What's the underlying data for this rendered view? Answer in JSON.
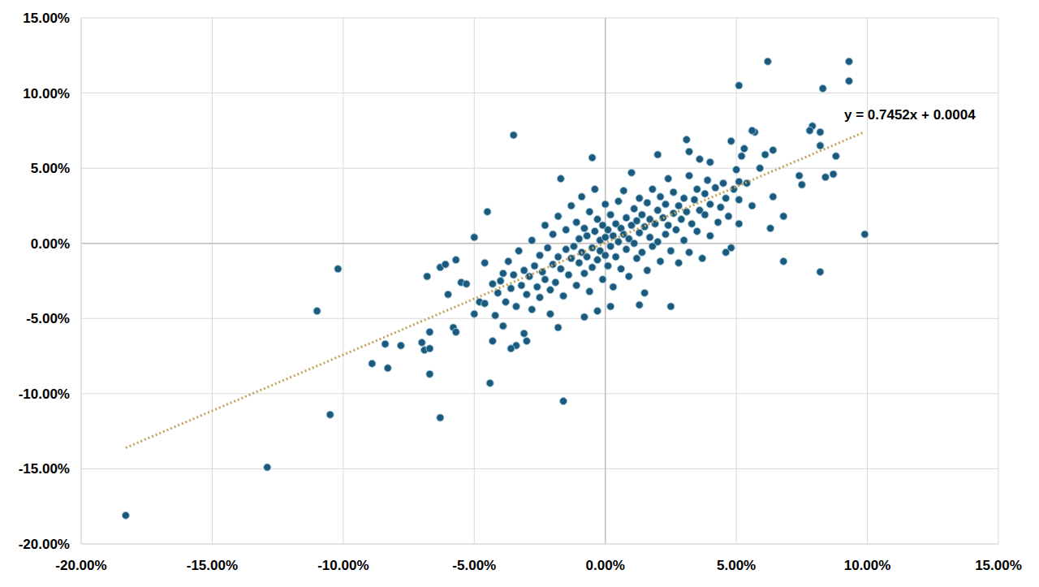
{
  "chart_data": {
    "type": "scatter",
    "marker": "circle",
    "color": "#1b5a7c",
    "x": [
      -18.3,
      -12.9,
      -11.0,
      -10.2,
      -10.5,
      -8.9,
      -8.3,
      -8.4,
      -7.8,
      -7.0,
      -6.9,
      -6.7,
      -6.7,
      -6.3,
      -6.8,
      -6.7,
      -6.3,
      -6.1,
      -5.7,
      -6.0,
      -5.8,
      -5.7,
      -5.5,
      -5.3,
      -5.0,
      -5.0,
      -4.8,
      -4.5,
      -4.4,
      -4.3,
      -3.5,
      -1.6,
      -1.7,
      -0.5,
      5.1,
      6.2,
      9.3,
      9.3,
      8.3,
      9.9,
      8.2,
      6.8,
      8.7,
      8.4,
      8.8,
      8.2,
      8.2,
      7.9,
      7.8,
      7.4,
      7.5,
      6.8,
      6.3,
      6.4,
      6.4,
      6.1,
      5.9,
      5.7,
      5.6,
      5.3,
      5.2,
      5.1,
      5.1,
      5.1,
      4.8,
      4.6,
      4.8,
      2.5,
      1.5,
      1.3,
      0.2,
      -0.3,
      -0.8,
      -1.8,
      -2.1,
      -3.0,
      -3.1,
      -3.4,
      -3.6,
      -3.9,
      3.1,
      3.2,
      2.0,
      4.0,
      3.6,
      -4.0,
      -3.8,
      -3.7,
      -3.6,
      -3.5,
      -3.4,
      -3.3,
      -3.2,
      -3.1,
      -3.0,
      -2.9,
      -2.8,
      -2.8,
      -2.7,
      -2.6,
      -2.5,
      -2.5,
      -2.4,
      -2.3,
      -2.3,
      -2.2,
      -2.1,
      -2.0,
      -2.0,
      -1.9,
      -1.8,
      -1.8,
      -1.7,
      -1.6,
      -1.5,
      -1.5,
      -1.4,
      -1.3,
      -1.3,
      -1.2,
      -1.1,
      -1.1,
      -1.0,
      -1.0,
      -0.9,
      -0.9,
      -0.8,
      -0.8,
      -0.7,
      -0.7,
      -0.6,
      -0.6,
      -0.5,
      -0.5,
      -0.4,
      -0.4,
      -0.3,
      -0.3,
      -0.2,
      -0.2,
      -0.1,
      -0.1,
      0.0,
      0.0,
      0.0,
      0.1,
      0.1,
      0.2,
      0.2,
      0.3,
      0.3,
      0.4,
      0.4,
      0.5,
      0.5,
      0.6,
      0.6,
      0.7,
      0.7,
      0.8,
      0.8,
      0.9,
      0.9,
      1.0,
      1.0,
      1.1,
      1.1,
      1.2,
      1.2,
      1.3,
      1.3,
      1.4,
      1.4,
      1.5,
      1.6,
      1.6,
      1.7,
      1.7,
      1.8,
      1.8,
      1.9,
      2.0,
      2.0,
      2.1,
      2.1,
      2.2,
      2.3,
      2.3,
      2.4,
      2.4,
      2.5,
      2.6,
      2.6,
      2.7,
      2.8,
      2.8,
      2.9,
      3.0,
      3.0,
      3.1,
      3.2,
      3.2,
      3.3,
      3.4,
      3.5,
      3.5,
      3.6,
      3.7,
      3.8,
      3.8,
      3.9,
      4.0,
      4.0,
      4.2,
      4.3,
      4.4,
      4.5,
      4.6,
      4.7,
      4.9,
      5.0,
      5.4,
      5.6,
      -4.2,
      -4.1,
      -3.9,
      -4.6,
      -4.6,
      -4.3
    ],
    "values": [
      -18.1,
      -14.9,
      -4.5,
      -1.7,
      -11.4,
      -8.0,
      -8.3,
      -6.7,
      -6.8,
      -6.6,
      -7.1,
      -7.0,
      -8.7,
      -11.6,
      -2.2,
      -5.9,
      -1.6,
      -1.4,
      -1.1,
      -3.4,
      -5.6,
      -5.9,
      -2.6,
      -2.7,
      -4.7,
      0.4,
      -3.9,
      2.1,
      -9.3,
      -6.5,
      7.2,
      -10.5,
      4.3,
      5.7,
      10.5,
      12.1,
      12.1,
      10.8,
      10.3,
      0.6,
      -1.9,
      -1.2,
      4.6,
      4.4,
      5.8,
      6.5,
      7.4,
      7.8,
      7.5,
      4.5,
      3.9,
      1.8,
      1.0,
      3.1,
      6.2,
      5.9,
      5.0,
      7.4,
      7.5,
      6.3,
      5.8,
      4.1,
      2.9,
      1.3,
      -0.3,
      -0.6,
      6.8,
      -4.2,
      -3.3,
      -4.1,
      -4.2,
      -4.5,
      -4.9,
      -5.6,
      -4.7,
      -6.5,
      -6.0,
      -6.8,
      -7.0,
      -5.5,
      6.9,
      6.1,
      5.9,
      5.4,
      5.6,
      -2.5,
      -3.9,
      -1.2,
      -3.0,
      -2.1,
      -4.2,
      -0.5,
      -2.8,
      -1.8,
      -3.4,
      -2.2,
      0.2,
      -4.4,
      -1.5,
      -2.9,
      -0.8,
      -3.6,
      -1.9,
      1.2,
      -2.4,
      -0.3,
      -3.1,
      -1.4,
      0.6,
      -2.6,
      -0.9,
      1.8,
      -1.7,
      -3.5,
      -0.4,
      0.9,
      -2.1,
      -1.0,
      2.5,
      -0.2,
      -2.8,
      1.4,
      -1.3,
      0.3,
      -0.6,
      3.1,
      -2.0,
      1.0,
      -0.9,
      0.5,
      -3.2,
      2.1,
      -0.3,
      -1.6,
      0.8,
      3.6,
      -1.1,
      1.6,
      -0.5,
      0.2,
      -2.4,
      1.2,
      -0.8,
      0.4,
      2.6,
      -1.5,
      0.9,
      -0.2,
      1.9,
      -2.9,
      0.5,
      1.3,
      -0.9,
      0.1,
      2.8,
      -1.7,
      1.0,
      0.6,
      3.5,
      -0.4,
      1.7,
      0.3,
      -2.2,
      1.2,
      4.7,
      0.0,
      2.3,
      -1.0,
      1.5,
      0.7,
      3.0,
      -0.6,
      1.9,
      1.1,
      2.7,
      -1.8,
      0.4,
      1.6,
      3.6,
      -0.2,
      1.3,
      2.2,
      0.1,
      -1.2,
      3.1,
      1.7,
      0.6,
      2.6,
      4.3,
      1.2,
      -0.5,
      2.0,
      3.4,
      0.9,
      2.5,
      -1.3,
      1.6,
      3.0,
      0.2,
      2.1,
      4.5,
      -0.6,
      1.3,
      2.9,
      0.8,
      3.6,
      2.2,
      -1.0,
      1.9,
      3.3,
      4.2,
      0.5,
      2.6,
      3.7,
      1.4,
      2.4,
      4.0,
      3.0,
      1.8,
      3.6,
      4.9,
      4.0,
      2.5,
      -4.8,
      -3.3,
      -2.0,
      -4.0,
      -1.3,
      -2.7
    ],
    "trendline": {
      "x": [
        -18.3,
        9.9
      ],
      "values": [
        -13.6,
        7.42
      ],
      "color": "#c4a35a",
      "line_style": "dotted"
    },
    "annotations": [
      {
        "text": "y = 0.7452x + 0.0004"
      }
    ],
    "xlim": [
      -20,
      15
    ],
    "xticks": [
      {
        "value": -20,
        "label": "-20.00%"
      },
      {
        "value": -15,
        "label": "-15.00%"
      },
      {
        "value": -10,
        "label": "-10.00%"
      },
      {
        "value": -5,
        "label": "-5.00%"
      },
      {
        "value": 0,
        "label": "0.00%"
      },
      {
        "value": 5,
        "label": "5.00%"
      },
      {
        "value": 10,
        "label": "10.00%"
      },
      {
        "value": 15,
        "label": "15.00%"
      }
    ],
    "ylim": [
      -20,
      15
    ],
    "yticks": [
      {
        "value": -20,
        "label": "-20.00%"
      },
      {
        "value": -15,
        "label": "-15.00%"
      },
      {
        "value": -10,
        "label": "-10.00%"
      },
      {
        "value": -5,
        "label": "-5.00%"
      },
      {
        "value": 0,
        "label": "0.00%"
      },
      {
        "value": 5,
        "label": "5.00%"
      },
      {
        "value": 10,
        "label": "10.00%"
      },
      {
        "value": 15,
        "label": "15.00%"
      }
    ],
    "grid": true
  }
}
